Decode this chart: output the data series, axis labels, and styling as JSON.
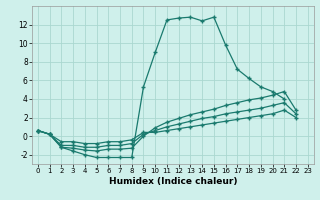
{
  "xlabel": "Humidex (Indice chaleur)",
  "bg_color": "#cff0eb",
  "grid_color": "#aad8d0",
  "line_color": "#1a7a6e",
  "xlim": [
    -0.5,
    23.5
  ],
  "ylim": [
    -3.0,
    14.0
  ],
  "xticks": [
    0,
    1,
    2,
    3,
    4,
    5,
    6,
    7,
    8,
    9,
    10,
    11,
    12,
    13,
    14,
    15,
    16,
    17,
    18,
    19,
    20,
    21,
    22,
    23
  ],
  "yticks": [
    -2,
    0,
    2,
    4,
    6,
    8,
    10,
    12
  ],
  "series": [
    {
      "x": [
        0,
        1,
        2,
        3,
        4,
        5,
        6,
        7,
        8,
        9,
        10,
        11,
        12,
        13,
        14,
        15,
        16,
        17,
        18,
        19,
        20,
        21
      ],
      "y": [
        0.6,
        0.2,
        -1.2,
        -1.6,
        -2.0,
        -2.3,
        -2.3,
        -2.3,
        -2.3,
        5.3,
        9.0,
        12.5,
        12.7,
        12.8,
        12.4,
        12.8,
        9.8,
        7.2,
        6.2,
        5.3,
        4.8,
        4.0
      ]
    },
    {
      "x": [
        0,
        1,
        2,
        3,
        4,
        5,
        6,
        7,
        8,
        9,
        10,
        11,
        12,
        13,
        14,
        15,
        16,
        17,
        18,
        19,
        20,
        21,
        22,
        23
      ],
      "y": [
        0.6,
        0.2,
        -1.2,
        -1.3,
        -1.5,
        -1.6,
        -1.4,
        -1.4,
        -1.3,
        0.0,
        0.9,
        1.5,
        1.9,
        2.3,
        2.6,
        2.9,
        3.3,
        3.6,
        3.9,
        4.1,
        4.4,
        4.8,
        2.8,
        null
      ]
    },
    {
      "x": [
        0,
        1,
        2,
        3,
        4,
        5,
        6,
        7,
        8,
        9,
        10,
        11,
        12,
        13,
        14,
        15,
        16,
        17,
        18,
        19,
        20,
        21,
        22,
        23
      ],
      "y": [
        0.6,
        0.2,
        -1.0,
        -1.0,
        -1.2,
        -1.2,
        -1.0,
        -1.0,
        -0.8,
        0.2,
        0.6,
        1.0,
        1.3,
        1.6,
        1.9,
        2.1,
        2.4,
        2.6,
        2.8,
        3.0,
        3.3,
        3.6,
        2.4,
        null
      ]
    },
    {
      "x": [
        0,
        1,
        2,
        3,
        4,
        5,
        6,
        7,
        8,
        9,
        10,
        11,
        12,
        13,
        14,
        15,
        16,
        17,
        18,
        19,
        20,
        21,
        22,
        23
      ],
      "y": [
        0.6,
        0.2,
        -0.6,
        -0.6,
        -0.8,
        -0.8,
        -0.6,
        -0.6,
        -0.4,
        0.4,
        0.4,
        0.6,
        0.8,
        1.0,
        1.2,
        1.4,
        1.6,
        1.8,
        2.0,
        2.2,
        2.4,
        2.8,
        2.0,
        null
      ]
    }
  ]
}
